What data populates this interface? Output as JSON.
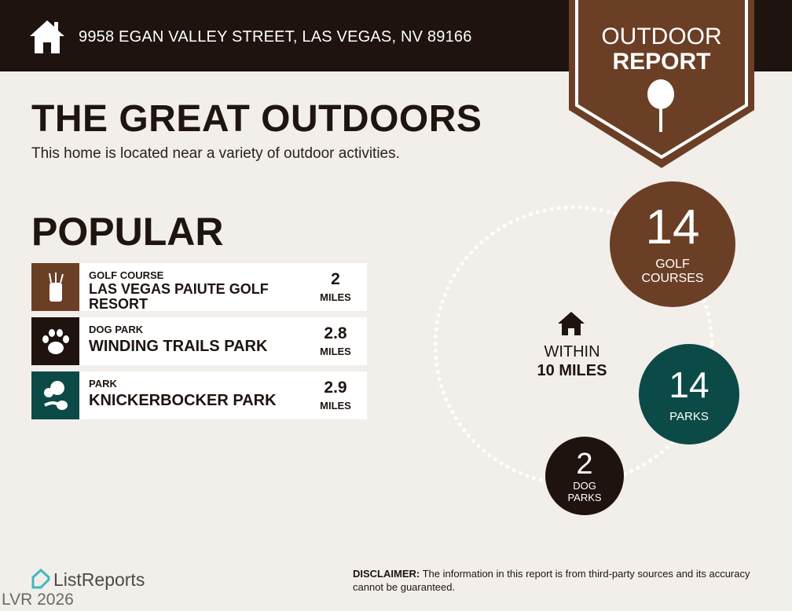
{
  "header": {
    "address": "9958 EGAN VALLEY STREET, LAS VEGAS, NV 89166",
    "home_icon": "house-icon"
  },
  "badge": {
    "line1": "OUTDOOR",
    "line2": "REPORT",
    "icon": "tree-icon",
    "color": "#6b3f26"
  },
  "main": {
    "title": "THE GREAT OUTDOORS",
    "subtitle": "This home is located near a variety of outdoor activities.",
    "section": "POPULAR"
  },
  "popular": [
    {
      "category": "GOLF COURSE",
      "name": "LAS VEGAS PAIUTE GOLF RESORT",
      "distance": "2",
      "unit": "MILES",
      "icon": "golf-bag-icon",
      "color": "#6b3f26"
    },
    {
      "category": "DOG PARK",
      "name": "WINDING TRAILS PARK",
      "distance": "2.8",
      "unit": "MILES",
      "icon": "paw-icon",
      "color": "#1e130e"
    },
    {
      "category": "PARK",
      "name": "KNICKERBOCKER PARK",
      "distance": "2.9",
      "unit": "MILES",
      "icon": "park-trees-icon",
      "color": "#0c4a48"
    }
  ],
  "summary": {
    "within_line1": "WITHIN",
    "within_line2": "10 MILES",
    "golf": {
      "count": "14",
      "label1": "GOLF",
      "label2": "COURSES",
      "color": "#6b3f26"
    },
    "parks": {
      "count": "14",
      "label": "PARKS",
      "color": "#0c4a48"
    },
    "dog": {
      "count": "2",
      "label1": "DOG",
      "label2": "PARKS",
      "color": "#1e130e"
    }
  },
  "footer": {
    "brand": "ListReports",
    "disclaimer_label": "DISCLAIMER:",
    "disclaimer": " The information in this report is from third-party sources and its accuracy cannot be guaranteed.",
    "watermark": "LVR 2026"
  }
}
